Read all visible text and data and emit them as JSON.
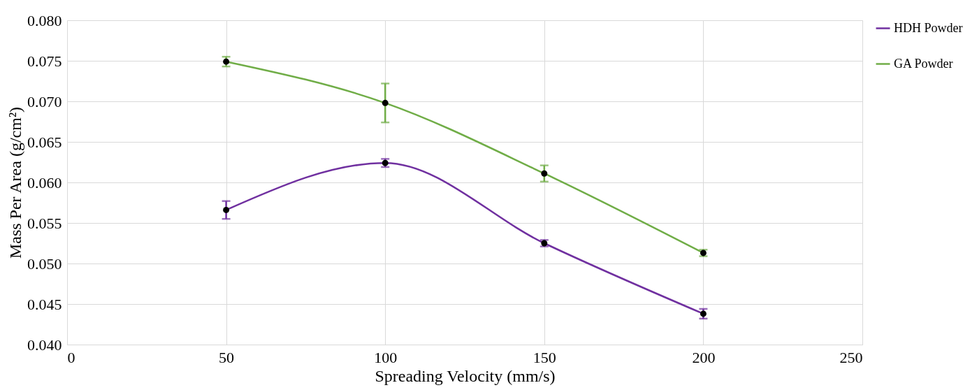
{
  "chart_data": {
    "type": "line",
    "xlabel": "Spreading Velocity  (mm/s)",
    "ylabel": "Mass Per Area (g/cm²)",
    "x": [
      50,
      100,
      150,
      200
    ],
    "series": [
      {
        "name": "HDH Powder",
        "color": "#7030a0",
        "values": [
          0.0566,
          0.0624,
          0.0525,
          0.0438
        ],
        "errors": [
          0.0011,
          0.0005,
          0.0004,
          0.0006
        ]
      },
      {
        "name": "GA Powder",
        "color": "#70ad47",
        "values": [
          0.0749,
          0.0698,
          0.0611,
          0.0513
        ],
        "errors": [
          0.0006,
          0.0024,
          0.001,
          0.0004
        ]
      }
    ],
    "xlim": [
      0,
      250
    ],
    "xticks": [
      0,
      50,
      100,
      150,
      200,
      250
    ],
    "ylim": [
      0.04,
      0.08
    ],
    "yticks": [
      {
        "value": 0.04,
        "label": "0.040"
      },
      {
        "value": 0.045,
        "label": "0.045"
      },
      {
        "value": 0.05,
        "label": "0.050"
      },
      {
        "value": 0.055,
        "label": "0.055"
      },
      {
        "value": 0.06,
        "label": "0.060"
      },
      {
        "value": 0.065,
        "label": "0.065"
      },
      {
        "value": 0.07,
        "label": "0.070"
      },
      {
        "value": 0.075,
        "label": "0.075"
      },
      {
        "value": 0.08,
        "label": "0.080"
      }
    ],
    "grid": true,
    "legend": "right",
    "marker": "circle",
    "line_style": "solid"
  }
}
